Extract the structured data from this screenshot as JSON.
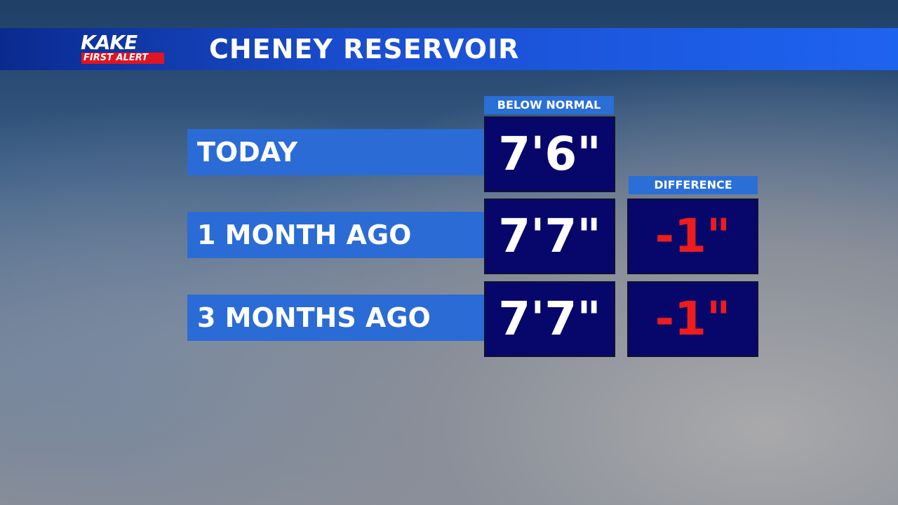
{
  "header": {
    "logo": {
      "brand": "KAKE",
      "badge_1": "FIRST",
      "badge_2": "ALERT"
    },
    "title": "CHENEY RESERVOIR"
  },
  "table": {
    "columns": [
      "BELOW NORMAL",
      "DIFFERENCE"
    ],
    "rows": [
      {
        "label": "TODAY",
        "below_normal": "7'6\""
      },
      {
        "label": "1 MONTH AGO",
        "below_normal": "7'7\"",
        "difference": "-1\""
      },
      {
        "label": "3 MONTHS AGO",
        "below_normal": "7'7\"",
        "difference": "-1\""
      }
    ]
  }
}
